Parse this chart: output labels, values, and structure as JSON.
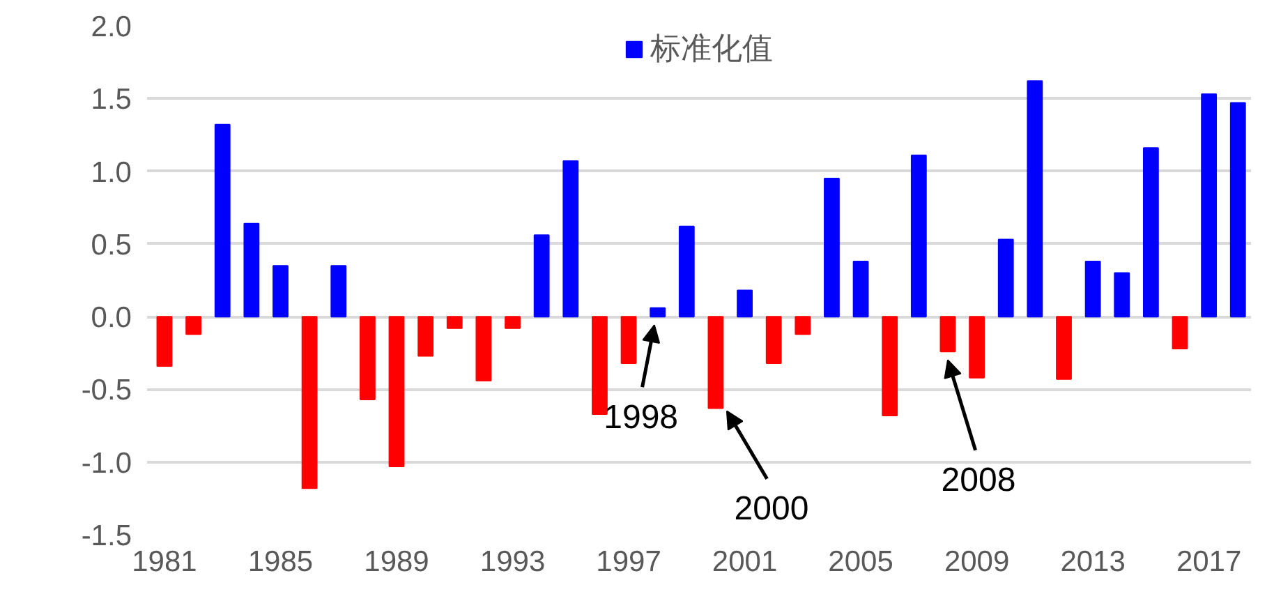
{
  "chart_data": {
    "type": "bar",
    "x": [
      1981,
      1982,
      1983,
      1984,
      1985,
      1986,
      1987,
      1988,
      1989,
      1990,
      1991,
      1992,
      1993,
      1994,
      1995,
      1996,
      1997,
      1998,
      1999,
      2000,
      2001,
      2002,
      2003,
      2004,
      2005,
      2006,
      2007,
      2008,
      2009,
      2010,
      2011,
      2012,
      2013,
      2014,
      2015,
      2016,
      2017,
      2018
    ],
    "series": [
      {
        "name": "标准化值",
        "color": "#0000ff",
        "values": [
          -0.34,
          -0.12,
          1.32,
          0.64,
          0.35,
          -1.18,
          0.35,
          -0.57,
          -1.03,
          -0.27,
          -0.08,
          -0.44,
          -0.08,
          0.56,
          1.07,
          -0.67,
          -0.32,
          0.06,
          0.62,
          -0.63,
          0.18,
          -0.32,
          -0.12,
          0.95,
          0.38,
          -0.68,
          1.11,
          -0.24,
          -0.42,
          0.53,
          1.62,
          -0.43,
          0.38,
          0.3,
          1.16,
          -0.22,
          1.53,
          1.47
        ],
        "colors": [
          "#ff0000",
          "#ff0000",
          "#0000ff",
          "#0000ff",
          "#0000ff",
          "#ff0000",
          "#0000ff",
          "#ff0000",
          "#ff0000",
          "#ff0000",
          "#ff0000",
          "#ff0000",
          "#ff0000",
          "#0000ff",
          "#0000ff",
          "#ff0000",
          "#ff0000",
          "#0000ff",
          "#0000ff",
          "#ff0000",
          "#0000ff",
          "#ff0000",
          "#ff0000",
          "#0000ff",
          "#0000ff",
          "#ff0000",
          "#0000ff",
          "#ff0000",
          "#ff0000",
          "#0000ff",
          "#0000ff",
          "#ff0000",
          "#0000ff",
          "#0000ff",
          "#0000ff",
          "#ff0000",
          "#0000ff",
          "#0000ff"
        ]
      }
    ],
    "xlim": [
      1980.4,
      2018.45
    ],
    "xticks": [
      1981,
      1985,
      1989,
      1993,
      1997,
      2001,
      2005,
      2009,
      2013,
      2017
    ],
    "ylim": [
      -1.5,
      2.0
    ],
    "yticks": [
      {
        "value": -1.5,
        "label": "-1.5"
      },
      {
        "value": -1.0,
        "label": "-1.0"
      },
      {
        "value": -0.5,
        "label": "-0.5"
      },
      {
        "value": 0.0,
        "label": "0.0"
      },
      {
        "value": 0.5,
        "label": "0.5"
      },
      {
        "value": 1.0,
        "label": "1.0"
      },
      {
        "value": 1.5,
        "label": "1.5"
      },
      {
        "value": 2.0,
        "label": "2.0"
      }
    ],
    "grid": "y",
    "legend": "top",
    "annotations": [
      {
        "text": "1998",
        "x": 1998,
        "y": 0.06
      },
      {
        "text": "2000",
        "x": 2000,
        "y": -0.63
      },
      {
        "text": "2008",
        "x": 2008,
        "y": -0.24
      }
    ]
  }
}
